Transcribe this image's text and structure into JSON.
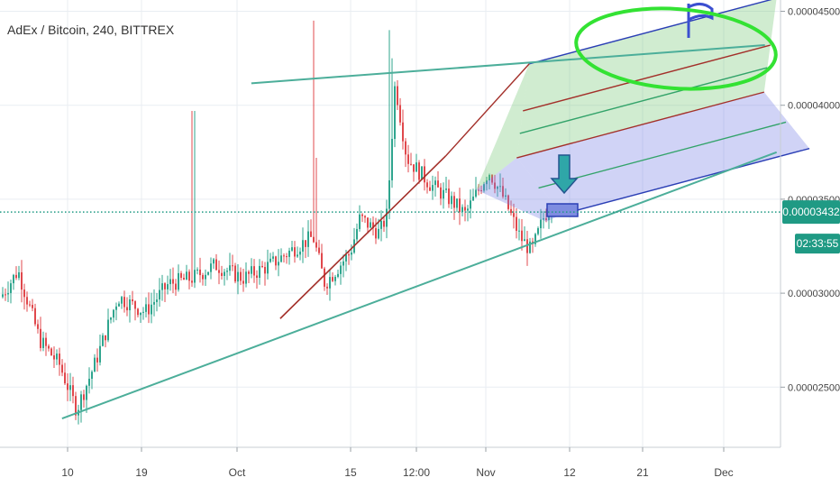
{
  "header": {
    "title": "AdEx / Bitcoin, 240, BITTREX"
  },
  "price_axis": {
    "ticks": [
      {
        "value": 2.5e-05,
        "label": "0.00002500"
      },
      {
        "value": 3e-05,
        "label": "0.00003000"
      },
      {
        "value": 3.5e-05,
        "label": "0.00003500"
      },
      {
        "value": 4e-05,
        "label": "0.00004000"
      },
      {
        "value": 4.5e-05,
        "label": "0.00004500"
      }
    ],
    "last_price": {
      "value": 3.432e-05,
      "label": "0.00003432"
    },
    "countdown": "02:33:55"
  },
  "time_axis": {
    "ticks": [
      {
        "label": "10"
      },
      {
        "label": "19"
      },
      {
        "label": "Oct"
      },
      {
        "label": "15"
      },
      {
        "label": "12:00"
      },
      {
        "label": "Nov"
      },
      {
        "label": "12"
      },
      {
        "label": "21"
      },
      {
        "label": "Dec"
      }
    ]
  },
  "colors": {
    "up": "#2fa58e",
    "down": "#e0484c",
    "trend_teal": "#4cae9a",
    "pitchfork_red": "#a3302a",
    "pitchfork_green": "#33a36a",
    "pitchfork_blue": "#2b3fb5",
    "ellipse": "#33e233",
    "price_line": "#1f9a84",
    "countdown_bg": "#1f9a84"
  },
  "chart_data": {
    "type": "candlestick",
    "symbol": "AdEx / Bitcoin",
    "interval": "240",
    "exchange": "BITTREX",
    "ylim": [
      2.18e-05,
      4.56e-05
    ],
    "last_price": 3.432e-05,
    "trendlines": [
      {
        "name": "lower-trendline",
        "from": [
          0.0795,
          2.333e-05
        ],
        "to": [
          0.74,
          3.747e-05
        ]
      },
      {
        "name": "resistance-line",
        "from": [
          0.322,
          4.117e-05
        ],
        "to": [
          0.68,
          4.32e-05
        ]
      },
      {
        "name": "pitchfork-handle",
        "from": [
          0.359,
          2.865e-05
        ],
        "to": [
          0.571,
          3.73e-05
        ]
      }
    ]
  }
}
